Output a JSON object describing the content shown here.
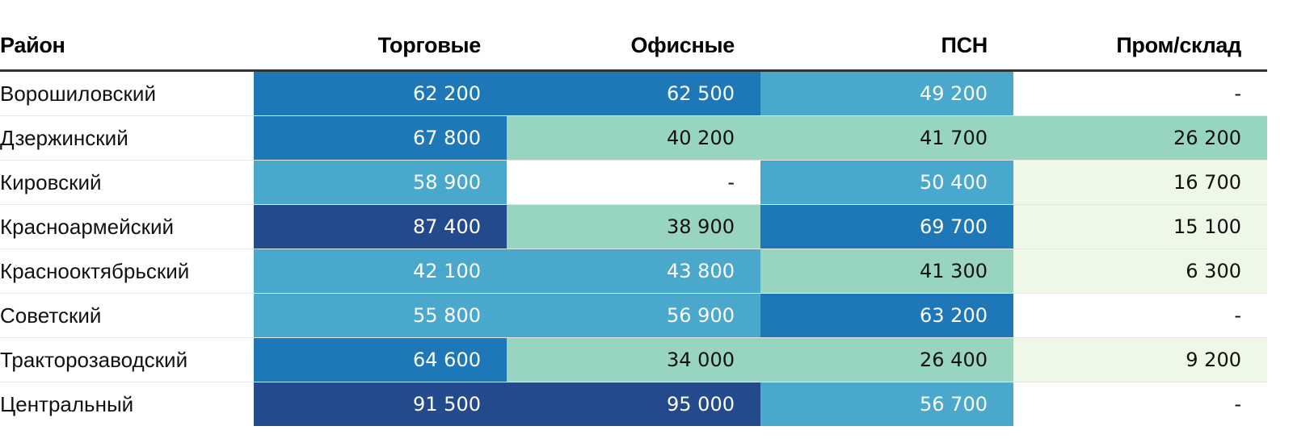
{
  "chart_data": {
    "type": "table",
    "columns": [
      "Район",
      "Торговые",
      "Офисные",
      "ПСН",
      "Пром/склад"
    ],
    "rows": [
      {
        "name": "Ворошиловский",
        "values": [
          "62 200",
          "62 500",
          "49 200",
          "-"
        ],
        "numeric": [
          62200,
          62500,
          49200,
          null
        ]
      },
      {
        "name": "Дзержинский",
        "values": [
          "67 800",
          "40 200",
          "41 700",
          "26 200"
        ],
        "numeric": [
          67800,
          40200,
          41700,
          26200
        ]
      },
      {
        "name": "Кировский",
        "values": [
          "58 900",
          "-",
          "50 400",
          "16 700"
        ],
        "numeric": [
          58900,
          null,
          50400,
          16700
        ]
      },
      {
        "name": "Красноармейский",
        "values": [
          "87 400",
          "38 900",
          "69 700",
          "15 100"
        ],
        "numeric": [
          87400,
          38900,
          69700,
          15100
        ]
      },
      {
        "name": "Краснооктябрьский",
        "values": [
          "42 100",
          "43 800",
          "41 300",
          "6 300"
        ],
        "numeric": [
          42100,
          43800,
          41300,
          6300
        ]
      },
      {
        "name": "Советский",
        "values": [
          "55 800",
          "56 900",
          "63 200",
          "-"
        ],
        "numeric": [
          55800,
          56900,
          63200,
          null
        ]
      },
      {
        "name": "Тракторозаводский",
        "values": [
          "64 600",
          "34 000",
          "26 400",
          "9 200"
        ],
        "numeric": [
          64600,
          34000,
          26400,
          9200
        ]
      },
      {
        "name": "Центральный",
        "values": [
          "91 500",
          "95 000",
          "56 700",
          "-"
        ],
        "numeric": [
          91500,
          95000,
          56700,
          null
        ]
      }
    ],
    "color_scale": {
      "missing": {
        "bg": "#ffffff",
        "fg": "#111111"
      },
      "bins": [
        {
          "min": 0,
          "max": 20000,
          "bg": "#eef8e6",
          "fg": "#111111"
        },
        {
          "min": 20000,
          "max": 42000,
          "bg": "#98d5c0",
          "fg": "#111111"
        },
        {
          "min": 42000,
          "max": 60000,
          "bg": "#4aa8cc",
          "fg": "#ffffff"
        },
        {
          "min": 60000,
          "max": 80000,
          "bg": "#1e78b8",
          "fg": "#ffffff"
        },
        {
          "min": 80000,
          "max": 1000000,
          "bg": "#234a8c",
          "fg": "#ffffff"
        }
      ]
    }
  }
}
